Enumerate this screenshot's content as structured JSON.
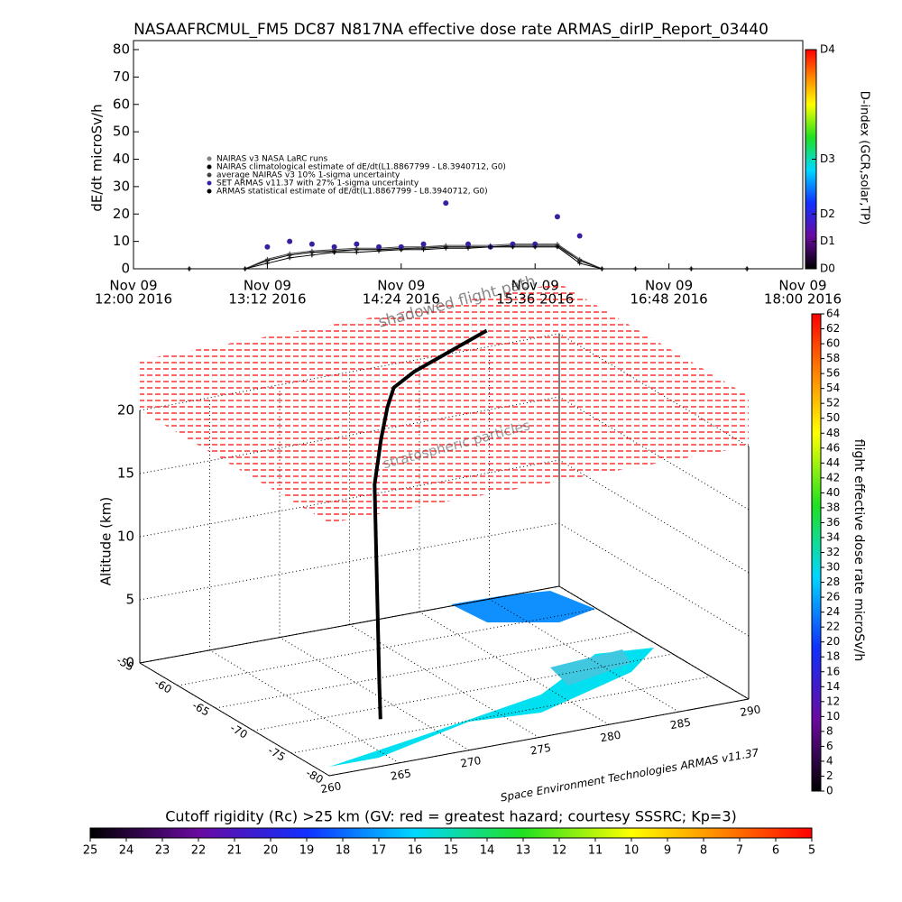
{
  "title": "NASAAFRCMUL_FM5 DC87 N817NA effective dose rate ARMAS_dirIP_Report_03440",
  "chart_data": [
    {
      "type": "line",
      "ylabel": "dE/dt microSv/h",
      "xlim": [
        12,
        18
      ],
      "xticks": [
        {
          "value": 12,
          "label": [
            "Nov 09",
            "12:00 2016"
          ]
        },
        {
          "value": 13.2,
          "label": [
            "Nov 09",
            "13:12 2016"
          ]
        },
        {
          "value": 14.4,
          "label": [
            "Nov 09",
            "14:24 2016"
          ]
        },
        {
          "value": 15.6,
          "label": [
            "Nov 09",
            "15:36 2016"
          ]
        },
        {
          "value": 16.8,
          "label": [
            "Nov 09",
            "16:48 2016"
          ]
        },
        {
          "value": 18,
          "label": [
            "Nov 09",
            "18:00 2016"
          ]
        }
      ],
      "ylim": [
        0,
        80
      ],
      "yticks": [
        0,
        10,
        20,
        30,
        40,
        50,
        60,
        70,
        80
      ],
      "y2label": "D-index (GCR,solar,TP)",
      "y2lim": [
        0,
        80
      ],
      "y2ticks": [
        {
          "value": 0,
          "label": "D0"
        },
        {
          "value": 10,
          "label": "D1"
        },
        {
          "value": 20,
          "label": "D2"
        },
        {
          "value": 40,
          "label": "D3"
        },
        {
          "value": 80,
          "label": "D4"
        }
      ],
      "x": [
        12.5,
        13.0,
        13.2,
        13.4,
        13.6,
        13.8,
        14.0,
        14.2,
        14.4,
        14.6,
        14.8,
        15.0,
        15.2,
        15.4,
        15.6,
        15.8,
        16.0,
        16.2,
        16.5,
        17.0,
        17.5
      ],
      "series": [
        {
          "name": "NAIRAS v3 NASA LaRC runs",
          "color": "#808080",
          "marker": "diamond",
          "values": [
            0,
            0,
            3,
            5,
            6,
            6,
            7,
            7,
            7,
            8,
            8,
            8,
            8,
            8,
            8,
            8,
            3,
            0,
            0,
            0,
            0
          ]
        },
        {
          "name": "NAIRAS climatological estimate of dE/dt(L1.8867799 - L8.3940712, G0)",
          "color": "#000000",
          "marker": "plus",
          "values": [
            0,
            0,
            3,
            5,
            6,
            6.5,
            7,
            7,
            7.5,
            7.5,
            8,
            8,
            8,
            8.5,
            8.5,
            8.5,
            3,
            0,
            0,
            0,
            0
          ]
        },
        {
          "name": "average NAIRAS v3 10% 1-sigma uncertainty",
          "color": "#404040",
          "marker": "triangle",
          "values": [
            0,
            0,
            3.5,
            5.5,
            6.5,
            7,
            7.5,
            7.5,
            8,
            8,
            8.5,
            8.5,
            8.5,
            9,
            9,
            9,
            3.5,
            0,
            0,
            0,
            0
          ]
        },
        {
          "name": "SET ARMAS v11.37 with 27% 1-sigma uncertainty",
          "color": "#3a20a0",
          "marker": "dot",
          "values": [
            null,
            null,
            8,
            10,
            9,
            8,
            9,
            8,
            8,
            9,
            24,
            9,
            8,
            9,
            9,
            19,
            12,
            null,
            null,
            null,
            null
          ]
        },
        {
          "name": "ARMAS statistical estimate of dE/dt(L1.8867799 - L8.3940712, G0)",
          "color": "#000000",
          "marker": "star",
          "values": [
            0,
            0,
            2,
            4,
            5,
            6,
            6,
            6.5,
            7,
            7,
            7.5,
            7.5,
            8,
            8,
            8,
            8,
            2,
            0,
            0,
            0,
            0
          ]
        }
      ]
    },
    {
      "type": "track3d",
      "zlabel": "Altitude (km)",
      "xlim": [
        260,
        290
      ],
      "xticks": [
        260,
        265,
        270,
        275,
        280,
        285,
        290
      ],
      "ylim": [
        -80,
        -55
      ],
      "yticks": [
        -55,
        -60,
        -65,
        -70,
        -75,
        -80
      ],
      "zlim": [
        0,
        20
      ],
      "zticks": [
        0,
        5,
        10,
        15,
        20
      ],
      "annotations": [
        "shadowed flight path",
        "stratospheric particles"
      ],
      "credit": "Space Environment Technologies ARMAS v11.37",
      "series": [
        {
          "color": "#000000",
          "x": [
            268,
            269,
            270,
            271,
            272,
            273,
            274,
            275,
            276,
            278,
            280,
            282,
            284
          ],
          "y": [
            -72,
            -70,
            -68,
            -66,
            -64,
            -62,
            -61,
            -60,
            -59,
            -58,
            -57.5,
            -57,
            -56.5
          ],
          "z": [
            0,
            2,
            5,
            8,
            11,
            14,
            17,
            19,
            20,
            20.5,
            21,
            21.5,
            22
          ]
        }
      ]
    },
    {
      "type": "colorbar",
      "label": "flight effective dose rate microSv/h",
      "lim": [
        0,
        64
      ],
      "ticks": [
        0,
        2,
        4,
        6,
        8,
        10,
        12,
        14,
        16,
        18,
        20,
        22,
        24,
        26,
        28,
        30,
        32,
        34,
        36,
        38,
        40,
        42,
        44,
        46,
        48,
        50,
        52,
        54,
        56,
        58,
        60,
        62,
        64
      ]
    },
    {
      "type": "hcolorbar",
      "label": "Cutoff rigidity (Rc) >25 km (GV: red = greatest hazard; courtesy SSSRC; Kp=3)",
      "lim": [
        25,
        5
      ],
      "ticks": [
        25,
        24,
        23,
        22,
        21,
        20,
        19,
        18,
        17,
        16,
        15,
        14,
        13,
        12,
        11,
        10,
        9,
        8,
        7,
        6,
        5
      ]
    }
  ]
}
